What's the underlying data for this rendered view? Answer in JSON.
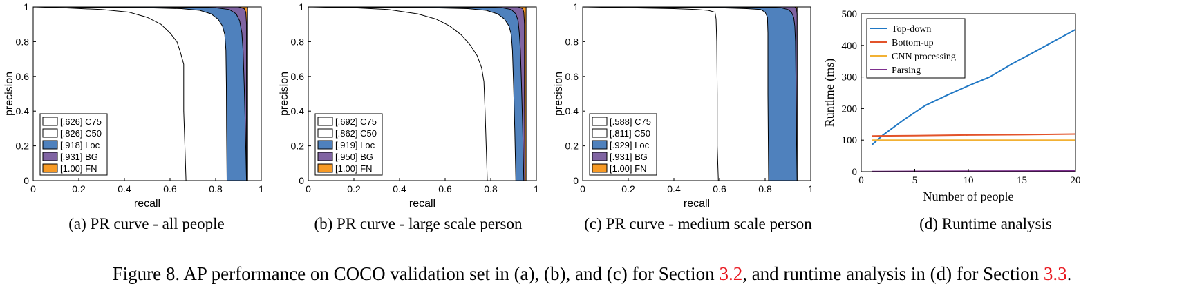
{
  "figure_caption": {
    "prefix": "Figure 8. AP performance on COCO validation set in (a), (b), and (c) for Section ",
    "ref1": "3.2",
    "middle": ", and runtime analysis in (d) for Section ",
    "ref2": "3.3",
    "suffix": "."
  },
  "colors": {
    "loc": "#4f81bd",
    "bg": "#8064a2",
    "fn": "#f79a26",
    "top_down": "#1f77c4",
    "bottom_up": "#e2532a",
    "cnn": "#f2b134",
    "parsing": "#7e2f8e"
  },
  "chart_data": [
    {
      "type": "area",
      "subcaption": "(a) PR curve - all people",
      "xlabel": "recall",
      "ylabel": "precision",
      "xlim": [
        0,
        1
      ],
      "ylim": [
        0,
        1
      ],
      "xticks": [
        "0",
        "0.2",
        "0.4",
        "0.6",
        "0.8",
        "1"
      ],
      "yticks": [
        "0",
        "0.2",
        "0.4",
        "0.6",
        "0.8",
        "1"
      ],
      "legend_position": "bottom-left",
      "series": [
        {
          "name": "[.626] C75",
          "fill": "white",
          "points": [
            [
              0,
              1
            ],
            [
              0.13,
              0.995
            ],
            [
              0.3,
              0.985
            ],
            [
              0.42,
              0.97
            ],
            [
              0.5,
              0.94
            ],
            [
              0.56,
              0.9
            ],
            [
              0.6,
              0.85
            ],
            [
              0.63,
              0.8
            ],
            [
              0.645,
              0.74
            ],
            [
              0.66,
              0.67
            ],
            [
              0.66,
              0.4
            ],
            [
              0.665,
              0.2
            ],
            [
              0.67,
              0
            ]
          ]
        },
        {
          "name": "[.826] C50",
          "fill": "white",
          "points": [
            [
              0,
              1
            ],
            [
              0.5,
              0.995
            ],
            [
              0.65,
              0.99
            ],
            [
              0.73,
              0.98
            ],
            [
              0.78,
              0.96
            ],
            [
              0.81,
              0.93
            ],
            [
              0.83,
              0.89
            ],
            [
              0.84,
              0.84
            ],
            [
              0.845,
              0.75
            ],
            [
              0.847,
              0.55
            ],
            [
              0.848,
              0.3
            ],
            [
              0.85,
              0
            ]
          ]
        },
        {
          "name": "[.918] Loc",
          "fill": "#4f81bd",
          "points": [
            [
              0,
              1
            ],
            [
              0.7,
              0.998
            ],
            [
              0.8,
              0.995
            ],
            [
              0.86,
              0.985
            ],
            [
              0.89,
              0.96
            ],
            [
              0.905,
              0.92
            ],
            [
              0.915,
              0.85
            ],
            [
              0.92,
              0.75
            ],
            [
              0.925,
              0.55
            ],
            [
              0.93,
              0.3
            ],
            [
              0.935,
              0
            ]
          ]
        },
        {
          "name": "[.931] BG",
          "fill": "#8064a2",
          "points": [
            [
              0,
              1
            ],
            [
              0.9,
              1
            ],
            [
              0.925,
              0.99
            ],
            [
              0.932,
              0.97
            ],
            [
              0.935,
              0.9
            ],
            [
              0.935,
              0
            ]
          ]
        },
        {
          "name": "[1.00] FN",
          "fill": "#f79a26",
          "points": [
            [
              0,
              1
            ],
            [
              0.94,
              1
            ],
            [
              0.94,
              0
            ]
          ]
        }
      ]
    },
    {
      "type": "area",
      "subcaption": "(b) PR curve - large scale person",
      "xlabel": "recall",
      "ylabel": "precision",
      "xlim": [
        0,
        1
      ],
      "ylim": [
        0,
        1
      ],
      "xticks": [
        "0",
        "0.2",
        "0.4",
        "0.6",
        "0.8",
        "1"
      ],
      "yticks": [
        "0",
        "0.2",
        "0.4",
        "0.6",
        "0.8",
        "1"
      ],
      "legend_position": "bottom-left",
      "series": [
        {
          "name": "[.692] C75",
          "fill": "white",
          "points": [
            [
              0,
              1
            ],
            [
              0.2,
              0.995
            ],
            [
              0.35,
              0.985
            ],
            [
              0.48,
              0.96
            ],
            [
              0.56,
              0.93
            ],
            [
              0.62,
              0.89
            ],
            [
              0.67,
              0.84
            ],
            [
              0.71,
              0.78
            ],
            [
              0.74,
              0.72
            ],
            [
              0.76,
              0.65
            ],
            [
              0.77,
              0.57
            ],
            [
              0.775,
              0.4
            ],
            [
              0.78,
              0.2
            ],
            [
              0.785,
              0
            ]
          ]
        },
        {
          "name": "[.862] C50",
          "fill": "white",
          "points": [
            [
              0,
              1
            ],
            [
              0.55,
              0.995
            ],
            [
              0.7,
              0.99
            ],
            [
              0.78,
              0.98
            ],
            [
              0.83,
              0.96
            ],
            [
              0.86,
              0.93
            ],
            [
              0.88,
              0.89
            ],
            [
              0.89,
              0.84
            ],
            [
              0.895,
              0.75
            ],
            [
              0.9,
              0.55
            ],
            [
              0.905,
              0.3
            ],
            [
              0.91,
              0
            ]
          ]
        },
        {
          "name": "[.919] Loc",
          "fill": "#4f81bd",
          "points": [
            [
              0,
              1
            ],
            [
              0.75,
              0.998
            ],
            [
              0.85,
              0.995
            ],
            [
              0.89,
              0.985
            ],
            [
              0.91,
              0.96
            ],
            [
              0.92,
              0.92
            ],
            [
              0.925,
              0.85
            ],
            [
              0.93,
              0.75
            ],
            [
              0.935,
              0.55
            ],
            [
              0.94,
              0.3
            ],
            [
              0.945,
              0
            ]
          ]
        },
        {
          "name": "[.950] BG",
          "fill": "#8064a2",
          "points": [
            [
              0,
              1
            ],
            [
              0.92,
              1
            ],
            [
              0.94,
              0.99
            ],
            [
              0.945,
              0.97
            ],
            [
              0.948,
              0.9
            ],
            [
              0.948,
              0.5
            ],
            [
              0.95,
              0
            ]
          ]
        },
        {
          "name": "[1.00] FN",
          "fill": "#f79a26",
          "points": [
            [
              0,
              1
            ],
            [
              0.955,
              1
            ],
            [
              0.955,
              0
            ]
          ]
        }
      ]
    },
    {
      "type": "area",
      "subcaption": "(c) PR curve - medium scale person",
      "xlabel": "recall",
      "ylabel": "precision",
      "xlim": [
        0,
        1
      ],
      "ylim": [
        0,
        1
      ],
      "xticks": [
        "0",
        "0.2",
        "0.4",
        "0.6",
        "0.8",
        "1"
      ],
      "yticks": [
        "0",
        "0.2",
        "0.4",
        "0.6",
        "0.8",
        "1"
      ],
      "legend_position": "bottom-left",
      "series": [
        {
          "name": "[.588] C75",
          "fill": "white",
          "points": [
            [
              0,
              1
            ],
            [
              0.2,
              0.995
            ],
            [
              0.4,
              0.99
            ],
            [
              0.5,
              0.985
            ],
            [
              0.55,
              0.98
            ],
            [
              0.58,
              0.97
            ],
            [
              0.585,
              0.93
            ],
            [
              0.588,
              0.8
            ],
            [
              0.59,
              0.5
            ],
            [
              0.59,
              0.2
            ],
            [
              0.595,
              0
            ]
          ]
        },
        {
          "name": "[.811] C50",
          "fill": "white",
          "points": [
            [
              0,
              1
            ],
            [
              0.6,
              0.995
            ],
            [
              0.72,
              0.99
            ],
            [
              0.78,
              0.985
            ],
            [
              0.8,
              0.97
            ],
            [
              0.81,
              0.94
            ],
            [
              0.812,
              0.85
            ],
            [
              0.812,
              0.5
            ],
            [
              0.815,
              0
            ]
          ]
        },
        {
          "name": "[.929] Loc",
          "fill": "#4f81bd",
          "points": [
            [
              0,
              1
            ],
            [
              0.8,
              0.998
            ],
            [
              0.87,
              0.995
            ],
            [
              0.9,
              0.985
            ],
            [
              0.915,
              0.97
            ],
            [
              0.925,
              0.94
            ],
            [
              0.93,
              0.89
            ],
            [
              0.933,
              0.8
            ],
            [
              0.935,
              0.6
            ],
            [
              0.937,
              0.3
            ],
            [
              0.94,
              0
            ]
          ]
        },
        {
          "name": "[.931] BG",
          "fill": "#8064a2",
          "points": [
            [
              0,
              1
            ],
            [
              0.93,
              1
            ],
            [
              0.937,
              0.99
            ],
            [
              0.94,
              0.96
            ],
            [
              0.94,
              0
            ]
          ]
        },
        {
          "name": "[1.00] FN",
          "fill": "#f79a26",
          "points": [
            [
              0,
              1
            ],
            [
              0.94,
              1
            ],
            [
              0.94,
              0
            ]
          ]
        }
      ]
    },
    {
      "type": "line",
      "subcaption": "(d) Runtime analysis",
      "xlabel": "Number of people",
      "ylabel": "Runtime (ms)",
      "xlim": [
        0,
        20
      ],
      "ylim": [
        0,
        500
      ],
      "xticks": [
        "0",
        "5",
        "10",
        "15",
        "20"
      ],
      "yticks": [
        "0",
        "100",
        "200",
        "300",
        "400",
        "500"
      ],
      "legend_position": "top-left",
      "series": [
        {
          "name": "Top-down",
          "color": "#1f77c4",
          "x": [
            1,
            2,
            4,
            6,
            8,
            10,
            12,
            14,
            16,
            18,
            20
          ],
          "values": [
            85,
            115,
            165,
            210,
            242,
            272,
            300,
            340,
            376,
            413,
            450
          ]
        },
        {
          "name": "Bottom-up",
          "color": "#e2532a",
          "x": [
            1,
            5,
            10,
            15,
            20
          ],
          "values": [
            113,
            114,
            116,
            117,
            119
          ]
        },
        {
          "name": "CNN processing",
          "color": "#f2b134",
          "x": [
            1,
            5,
            10,
            15,
            20
          ],
          "values": [
            100,
            100,
            100,
            100,
            100
          ]
        },
        {
          "name": "Parsing",
          "color": "#7e2f8e",
          "x": [
            1,
            5,
            10,
            15,
            20
          ],
          "values": [
            0.5,
            1,
            1.5,
            2,
            2.5
          ]
        }
      ]
    }
  ]
}
